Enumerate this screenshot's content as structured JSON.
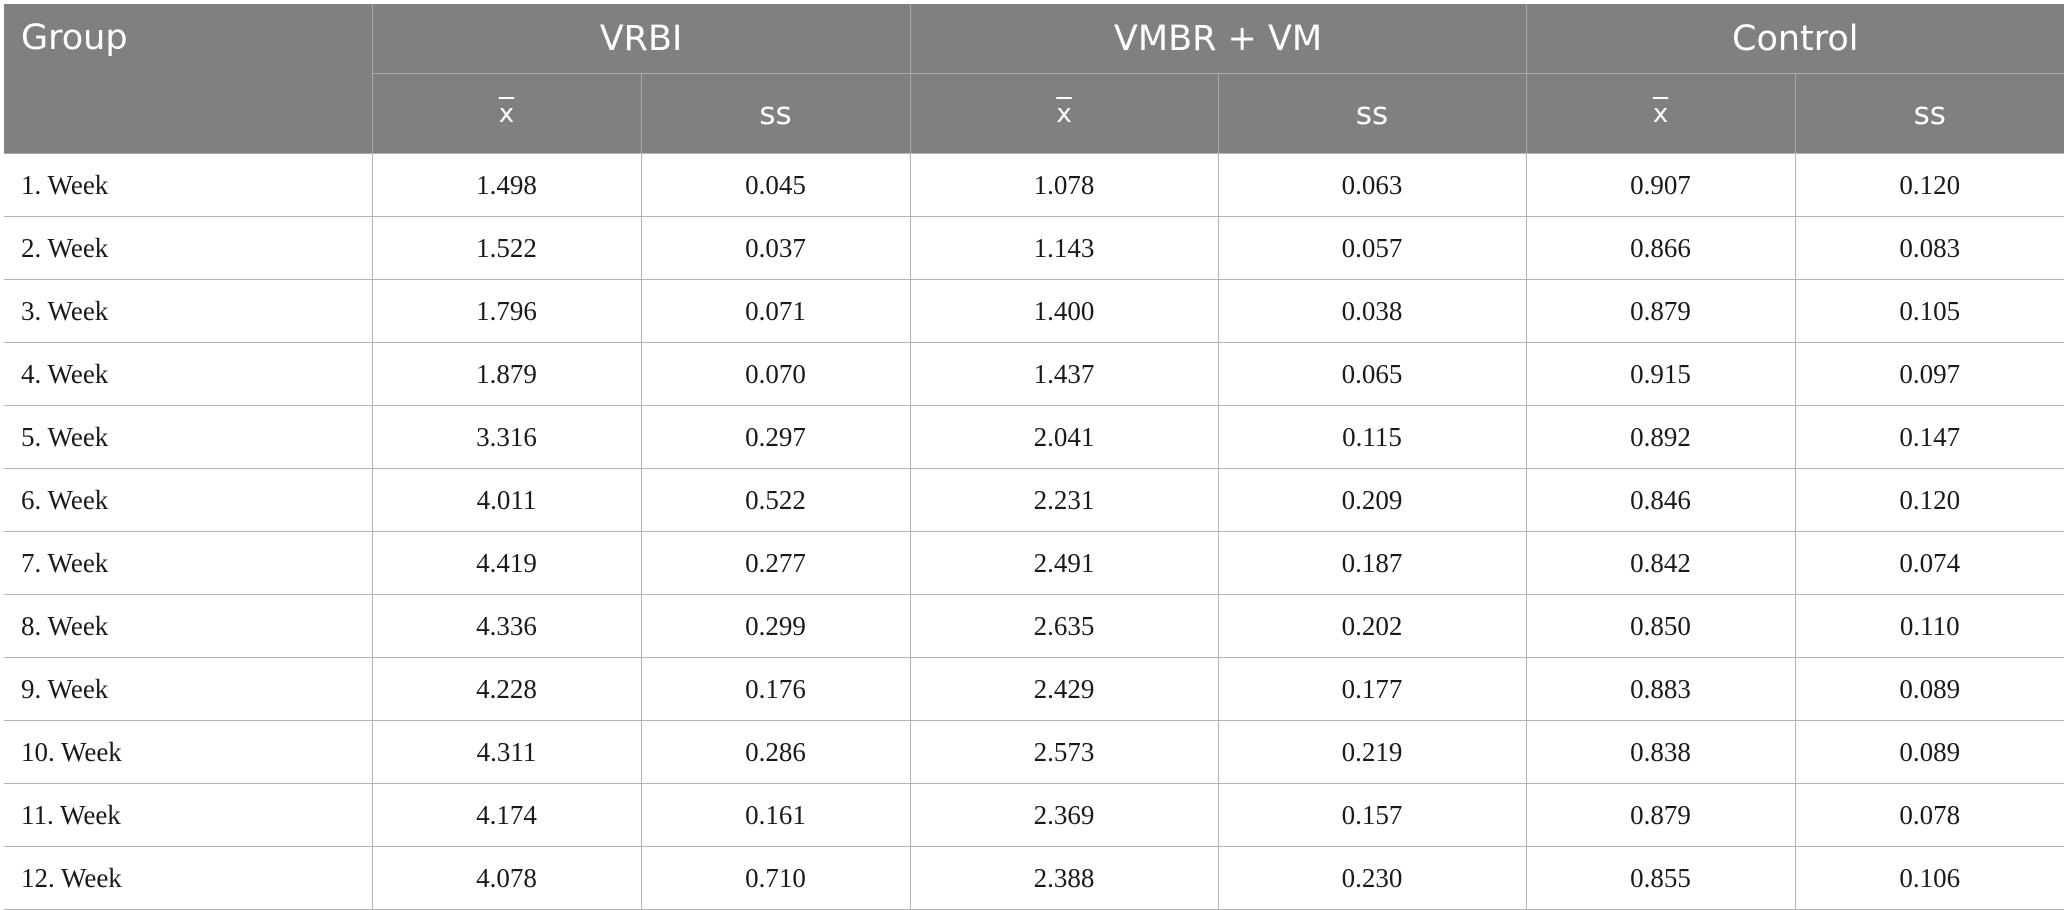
{
  "header": {
    "group_label": "Group",
    "groups": [
      "VRBI",
      "VMBR + VM",
      "Control"
    ],
    "mean_symbol": "x",
    "sd_label": "ss"
  },
  "rows": [
    {
      "label": "1. Week",
      "vrbi_x": "1.498",
      "vrbi_ss": "0.045",
      "vm_x": "1.078",
      "vm_ss": "0.063",
      "ctl_x": "0.907",
      "ctl_ss": "0.120"
    },
    {
      "label": "2. Week",
      "vrbi_x": "1.522",
      "vrbi_ss": "0.037",
      "vm_x": "1.143",
      "vm_ss": "0.057",
      "ctl_x": "0.866",
      "ctl_ss": "0.083"
    },
    {
      "label": "3. Week",
      "vrbi_x": "1.796",
      "vrbi_ss": "0.071",
      "vm_x": "1.400",
      "vm_ss": "0.038",
      "ctl_x": "0.879",
      "ctl_ss": "0.105"
    },
    {
      "label": "4. Week",
      "vrbi_x": "1.879",
      "vrbi_ss": "0.070",
      "vm_x": "1.437",
      "vm_ss": "0.065",
      "ctl_x": "0.915",
      "ctl_ss": "0.097"
    },
    {
      "label": "5. Week",
      "vrbi_x": "3.316",
      "vrbi_ss": "0.297",
      "vm_x": "2.041",
      "vm_ss": "0.115",
      "ctl_x": "0.892",
      "ctl_ss": "0.147"
    },
    {
      "label": "6. Week",
      "vrbi_x": "4.011",
      "vrbi_ss": "0.522",
      "vm_x": "2.231",
      "vm_ss": "0.209",
      "ctl_x": "0.846",
      "ctl_ss": "0.120"
    },
    {
      "label": "7. Week",
      "vrbi_x": "4.419",
      "vrbi_ss": "0.277",
      "vm_x": "2.491",
      "vm_ss": "0.187",
      "ctl_x": "0.842",
      "ctl_ss": "0.074"
    },
    {
      "label": "8. Week",
      "vrbi_x": "4.336",
      "vrbi_ss": "0.299",
      "vm_x": "2.635",
      "vm_ss": "0.202",
      "ctl_x": "0.850",
      "ctl_ss": "0.110"
    },
    {
      "label": "9. Week",
      "vrbi_x": "4.228",
      "vrbi_ss": "0.176",
      "vm_x": "2.429",
      "vm_ss": "0.177",
      "ctl_x": "0.883",
      "ctl_ss": "0.089"
    },
    {
      "label": "10. Week",
      "vrbi_x": "4.311",
      "vrbi_ss": "0.286",
      "vm_x": "2.573",
      "vm_ss": "0.219",
      "ctl_x": "0.838",
      "ctl_ss": "0.089"
    },
    {
      "label": "11. Week",
      "vrbi_x": "4.174",
      "vrbi_ss": "0.161",
      "vm_x": "2.369",
      "vm_ss": "0.157",
      "ctl_x": "0.879",
      "ctl_ss": "0.078"
    },
    {
      "label": "12. Week",
      "vrbi_x": "4.078",
      "vrbi_ss": "0.710",
      "vm_x": "2.388",
      "vm_ss": "0.230",
      "ctl_x": "0.855",
      "ctl_ss": "0.106"
    }
  ]
}
